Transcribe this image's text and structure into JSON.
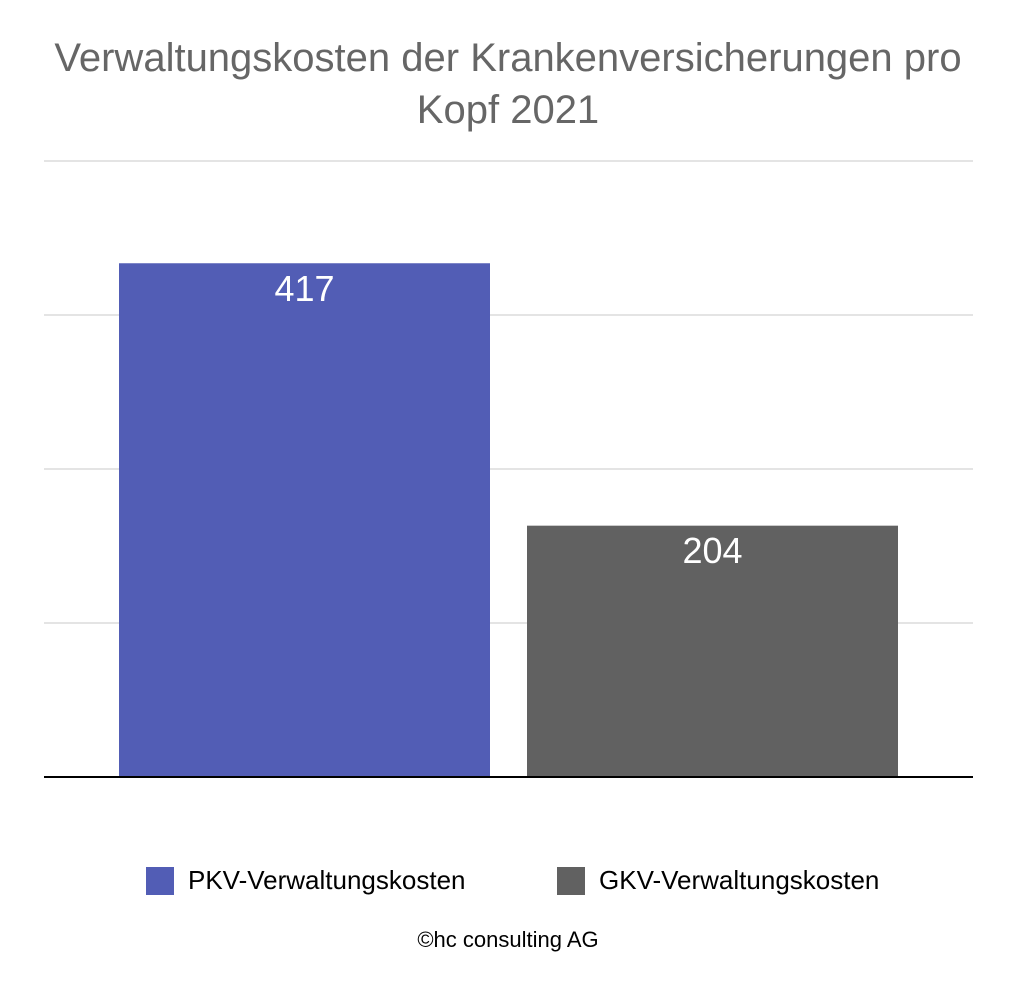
{
  "chart_data": {
    "type": "bar",
    "title": "Verwaltungskosten der Krankenversicherungen pro Kopf 2021",
    "categories": [
      null
    ],
    "series": [
      {
        "name": "PKV-Verwaltungskosten",
        "color": "#525db5",
        "values": [
          417
        ]
      },
      {
        "name": "GKV-Verwaltungskosten",
        "color": "#616161",
        "values": [
          204
        ]
      }
    ],
    "ylim": [
      0,
      500
    ],
    "yticks": [
      0,
      125,
      250,
      375,
      500
    ],
    "grid": true,
    "legend": "bottom",
    "caption": "©hc consulting AG"
  }
}
